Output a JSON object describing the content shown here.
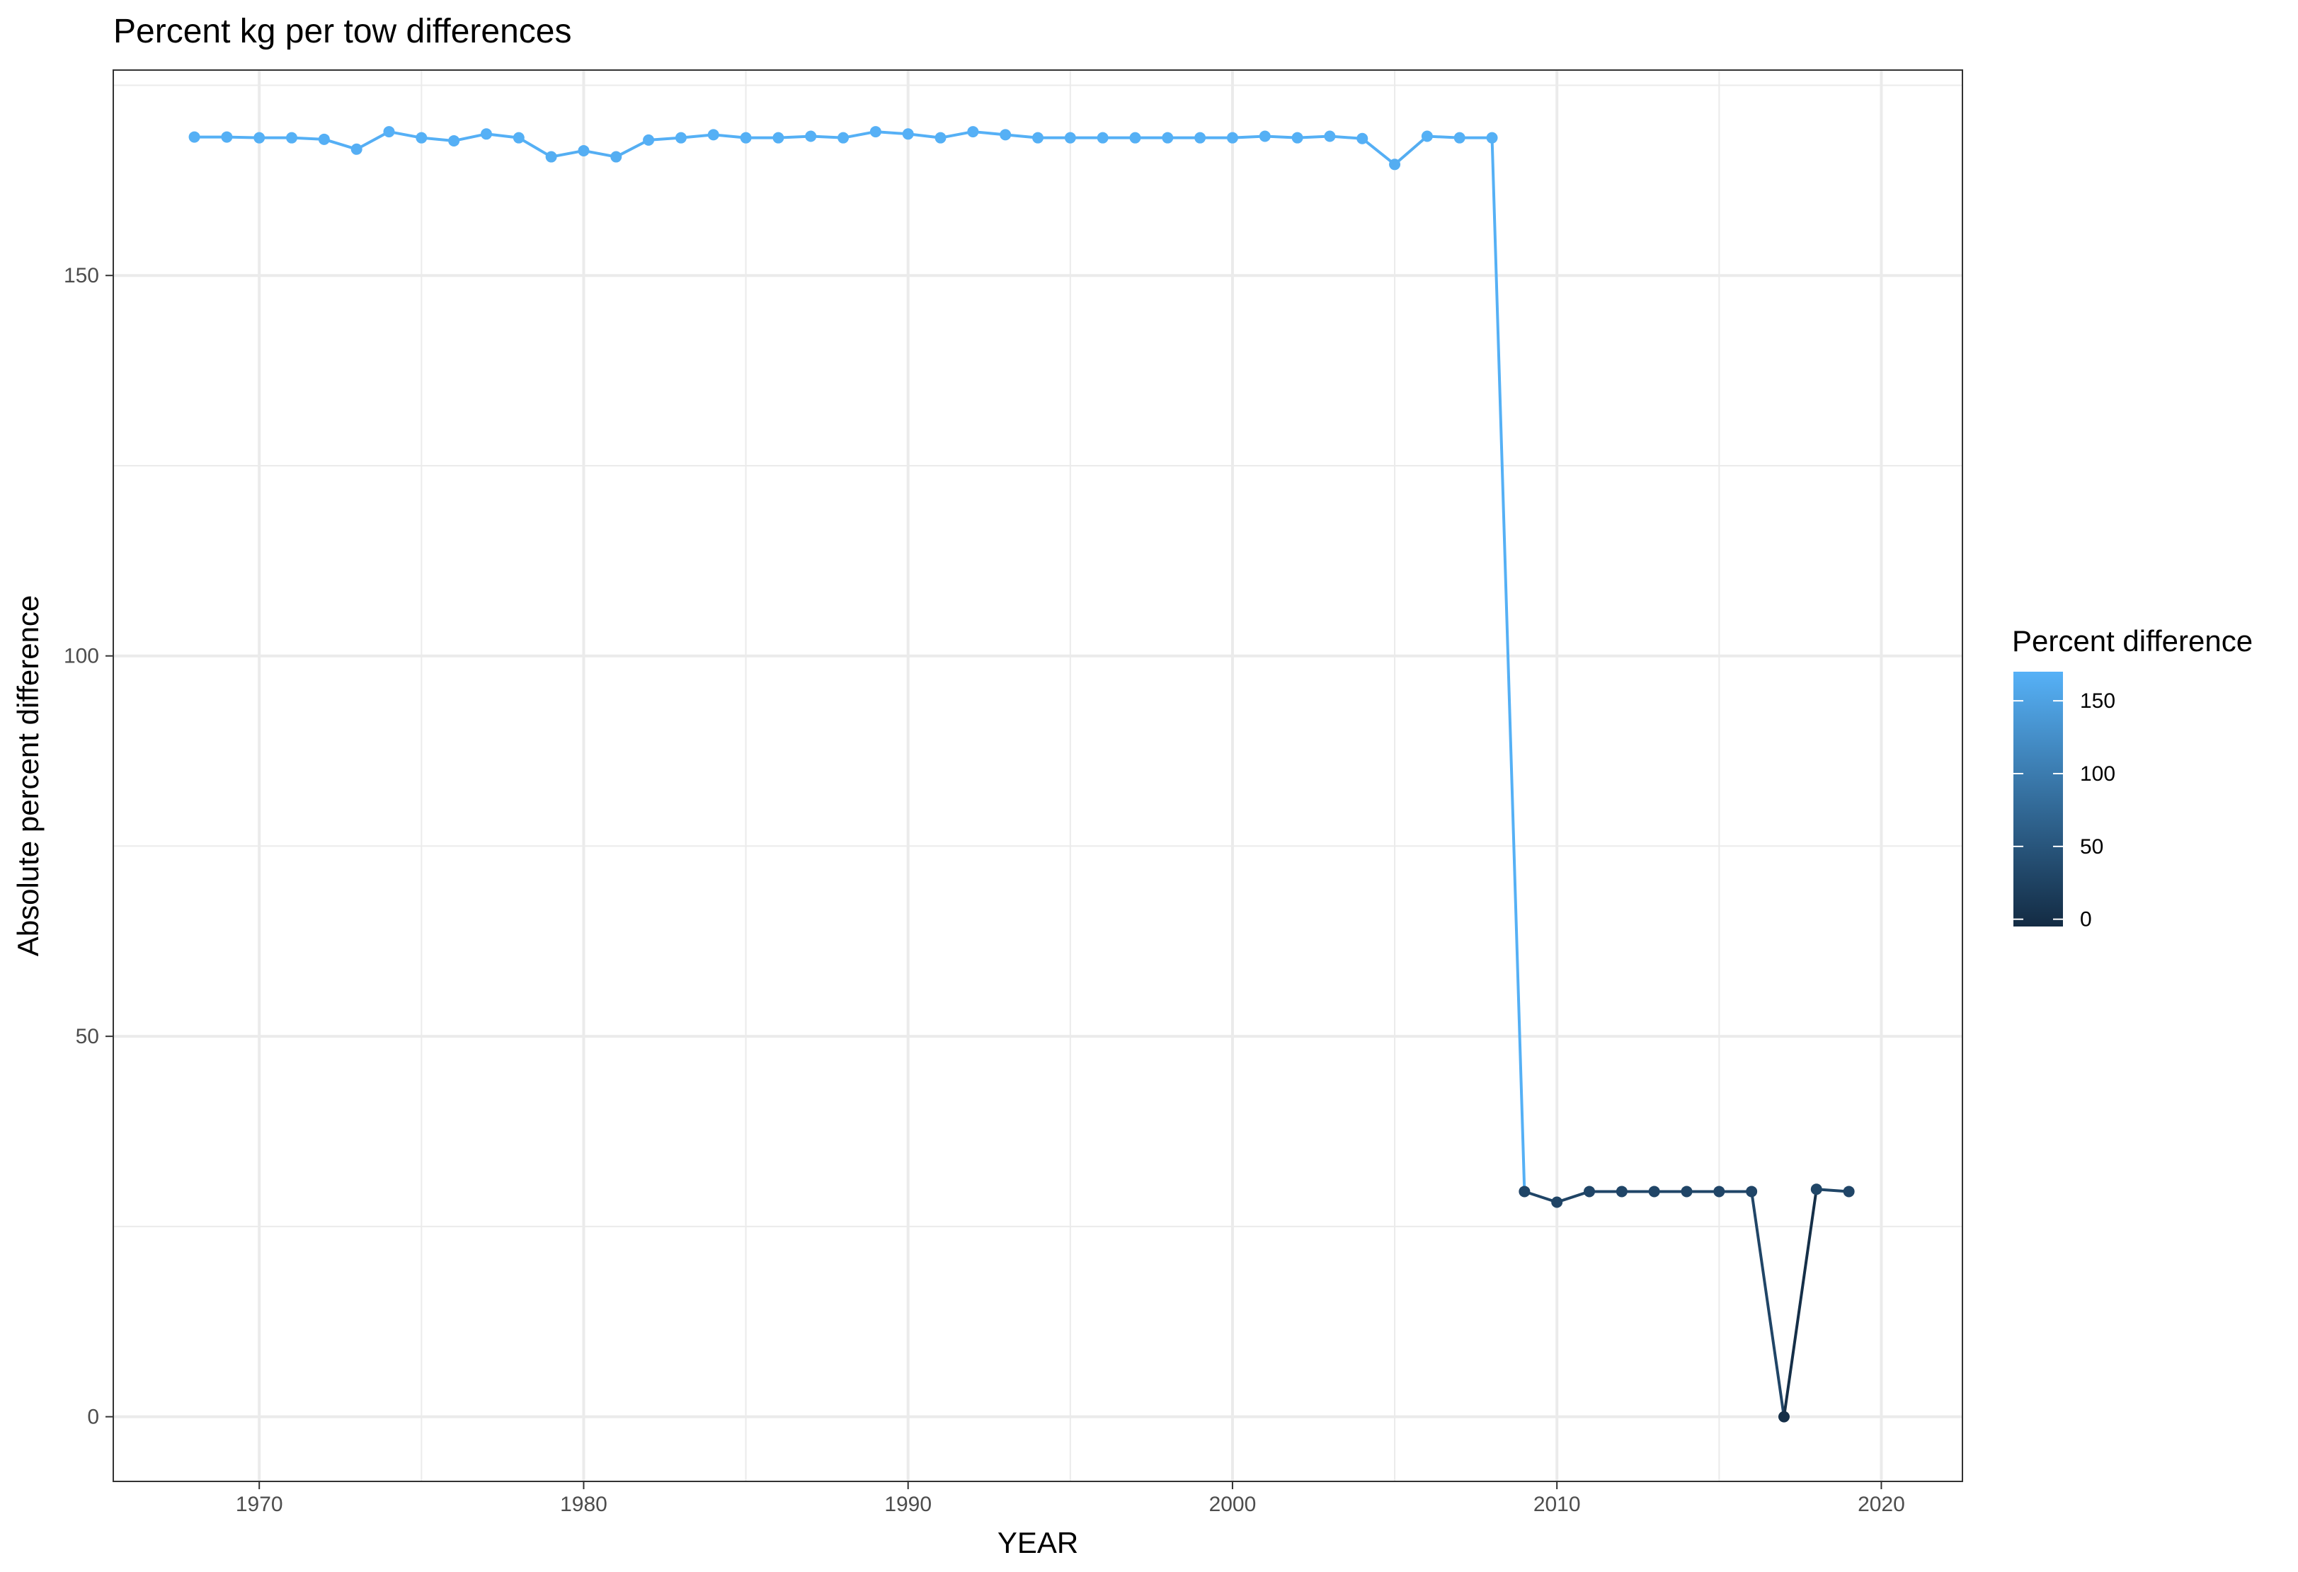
{
  "chart_data": {
    "type": "line",
    "title": "Percent kg per tow differences",
    "xlabel": "YEAR",
    "ylabel": "Absolute percent difference",
    "xlim": [
      1965.5,
      2022.5
    ],
    "ylim": [
      -8.5,
      177
    ],
    "x_ticks": [
      1970,
      1980,
      1990,
      2000,
      2010,
      2020
    ],
    "y_ticks": [
      0,
      50,
      100,
      150
    ],
    "grid": true,
    "legend": {
      "title": "Percent difference",
      "position": "right",
      "labels": [
        150,
        100,
        50,
        0
      ],
      "range": [
        -5,
        170
      ],
      "color_low": "#132B43",
      "color_high": "#56B1F7"
    },
    "series": [
      {
        "x": [
          1968,
          1969,
          1970,
          1971,
          1972,
          1973,
          1974,
          1975,
          1976,
          1977,
          1978,
          1979,
          1980,
          1981,
          1982,
          1983,
          1984,
          1985,
          1986,
          1987,
          1988,
          1989,
          1990,
          1991,
          1992,
          1993,
          1994,
          1995,
          1996,
          1997,
          1998,
          1999,
          2000,
          2001,
          2002,
          2003,
          2004,
          2005,
          2006,
          2007,
          2008,
          2009,
          2010,
          2011,
          2012,
          2013,
          2014,
          2015,
          2016,
          2017,
          2018,
          2019
        ],
        "y": [
          168.2,
          168.2,
          168.1,
          168.1,
          167.9,
          166.6,
          168.9,
          168.1,
          167.7,
          168.6,
          168.1,
          165.6,
          166.4,
          165.6,
          167.8,
          168.1,
          168.5,
          168.1,
          168.1,
          168.3,
          168.1,
          168.9,
          168.6,
          168.1,
          168.9,
          168.5,
          168.1,
          168.1,
          168.1,
          168.1,
          168.1,
          168.1,
          168.1,
          168.3,
          168.1,
          168.3,
          168.0,
          164.6,
          168.3,
          168.1,
          168.1,
          29.6,
          28.2,
          29.6,
          29.6,
          29.6,
          29.6,
          29.6,
          29.6,
          0.0,
          29.9,
          29.6
        ]
      }
    ]
  }
}
